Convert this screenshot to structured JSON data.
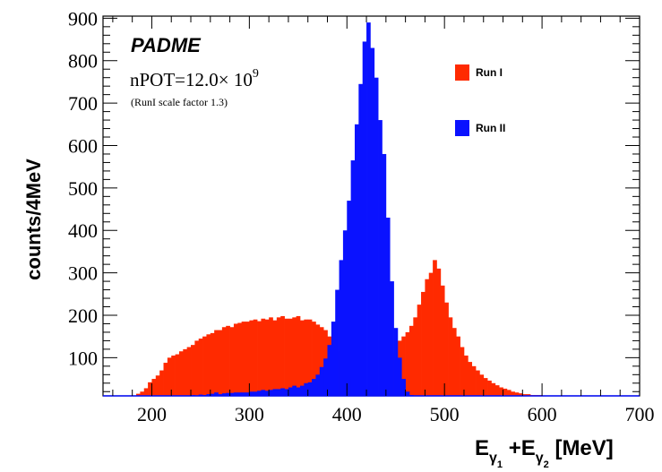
{
  "chart_data": {
    "type": "bar",
    "title": "PADME",
    "annotation_lines": [
      "nPOT=12.0× 10",
      "9",
      "(RunI scale factor 1.3)"
    ],
    "ylabel": "counts/4MeV",
    "xlabel": {
      "main": "E",
      "sub1": "γ",
      "sub1b": "1",
      "plus": " +E",
      "sub2": "γ",
      "sub2b": "2",
      "unit": " [MeV]"
    },
    "xlim": [
      150,
      700
    ],
    "ylim": [
      10,
      905
    ],
    "x_ticks": [
      "200",
      "300",
      "400",
      "500",
      "600",
      "700"
    ],
    "y_ticks": [
      "100",
      "200",
      "300",
      "400",
      "500",
      "600",
      "700",
      "800",
      "900"
    ],
    "bin_width": 4,
    "legend": {
      "position": "top-right"
    },
    "series": [
      {
        "name": "Run I",
        "color": "#ff2a00",
        "x": [
          186,
          190,
          194,
          198,
          202,
          206,
          210,
          214,
          218,
          222,
          226,
          230,
          234,
          238,
          242,
          246,
          250,
          254,
          258,
          262,
          266,
          270,
          274,
          278,
          282,
          286,
          290,
          294,
          298,
          302,
          306,
          310,
          314,
          318,
          322,
          326,
          330,
          334,
          338,
          342,
          346,
          350,
          354,
          358,
          362,
          366,
          370,
          374,
          378,
          382,
          386,
          390,
          394,
          398,
          402,
          406,
          410,
          414,
          418,
          422,
          426,
          430,
          434,
          438,
          442,
          446,
          450,
          454,
          458,
          462,
          466,
          470,
          474,
          478,
          482,
          486,
          490,
          494,
          498,
          502,
          506,
          510,
          514,
          518,
          522,
          526,
          530,
          534,
          538,
          542,
          546,
          550,
          554,
          558,
          562,
          566,
          570,
          574,
          578,
          582,
          586,
          590,
          594,
          598,
          602,
          606,
          610,
          614,
          618,
          622,
          626,
          630
        ],
        "values": [
          15,
          20,
          28,
          42,
          50,
          58,
          70,
          88,
          100,
          105,
          108,
          115,
          120,
          125,
          130,
          140,
          145,
          150,
          155,
          158,
          165,
          165,
          172,
          175,
          172,
          180,
          182,
          185,
          185,
          188,
          190,
          186,
          192,
          190,
          195,
          188,
          195,
          198,
          192,
          192,
          195,
          198,
          188,
          190,
          190,
          185,
          178,
          172,
          165,
          150,
          135,
          115,
          95,
          75,
          55,
          40,
          30,
          20,
          15,
          12,
          10,
          10,
          15,
          30,
          60,
          85,
          110,
          140,
          150,
          160,
          175,
          195,
          225,
          255,
          285,
          300,
          330,
          310,
          270,
          230,
          195,
          170,
          150,
          125,
          105,
          90,
          80,
          70,
          60,
          52,
          46,
          40,
          35,
          30,
          27,
          24,
          20,
          18,
          16,
          14,
          14,
          12,
          12,
          12,
          11,
          11,
          11,
          11,
          10,
          10,
          10,
          10
        ]
      },
      {
        "name": "Run II",
        "color": "#0a12ff",
        "x": [
          238,
          242,
          246,
          250,
          254,
          258,
          262,
          266,
          270,
          274,
          278,
          282,
          286,
          290,
          294,
          298,
          302,
          306,
          310,
          314,
          318,
          322,
          326,
          330,
          334,
          338,
          342,
          346,
          350,
          354,
          358,
          362,
          366,
          370,
          374,
          378,
          382,
          386,
          390,
          394,
          398,
          402,
          406,
          410,
          414,
          418,
          422,
          426,
          430,
          434,
          438,
          442,
          446,
          450,
          454,
          458,
          462,
          466,
          470
        ],
        "values": [
          11,
          12,
          11,
          13,
          12,
          14,
          15,
          18,
          14,
          16,
          17,
          17,
          18,
          18,
          18,
          18,
          20,
          20,
          22,
          24,
          22,
          24,
          26,
          26,
          28,
          26,
          30,
          34,
          30,
          34,
          40,
          42,
          50,
          60,
          78,
          98,
          130,
          185,
          260,
          330,
          400,
          470,
          565,
          650,
          745,
          845,
          890,
          830,
          760,
          660,
          580,
          430,
          280,
          170,
          100,
          50,
          20,
          12,
          10
        ]
      }
    ]
  }
}
